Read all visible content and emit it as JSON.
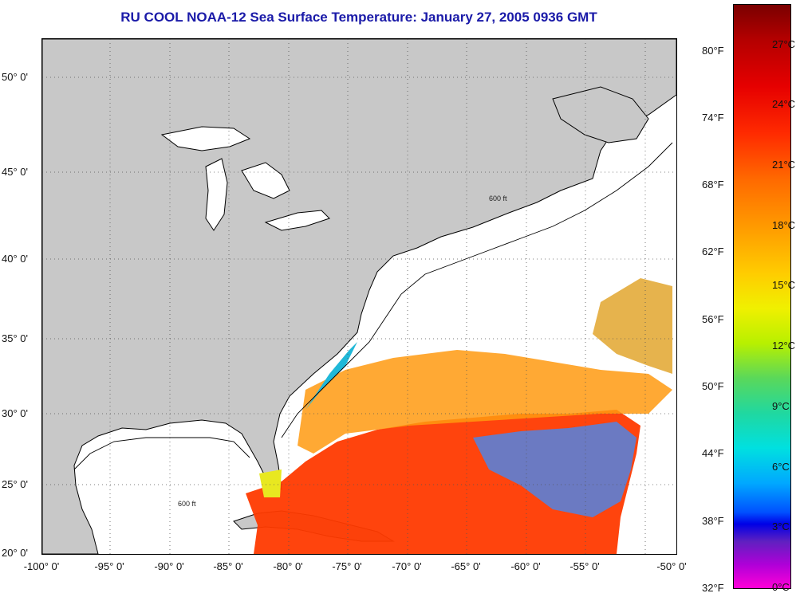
{
  "title": "RU COOL  NOAA-12  Sea Surface Temperature:  January 27, 2005 0936 GMT",
  "map": {
    "lat_labels": [
      "50° 0'",
      "45° 0'",
      "40° 0'",
      "35° 0'",
      "30° 0'",
      "25° 0'",
      "20° 0'"
    ],
    "lon_labels": [
      "-100° 0'",
      "-95° 0'",
      "-90° 0'",
      "-85° 0'",
      "-80° 0'",
      "-75° 0'",
      "-70° 0'",
      "-65° 0'",
      "-60° 0'",
      "-55° 0'",
      "-50° 0'"
    ],
    "contour_label": "600 ft",
    "land_color": "#c8c8c8",
    "cloud_color": "#ffffff"
  },
  "colorbar": {
    "fahrenheit_labels": [
      "80°F",
      "74°F",
      "68°F",
      "62°F",
      "56°F",
      "50°F",
      "44°F",
      "38°F",
      "32°F"
    ],
    "celsius_labels": [
      "27°C",
      "24°C",
      "21°C",
      "18°C",
      "15°C",
      "12°C",
      "9°C",
      "6°C",
      "3°C",
      "0°C"
    ]
  }
}
